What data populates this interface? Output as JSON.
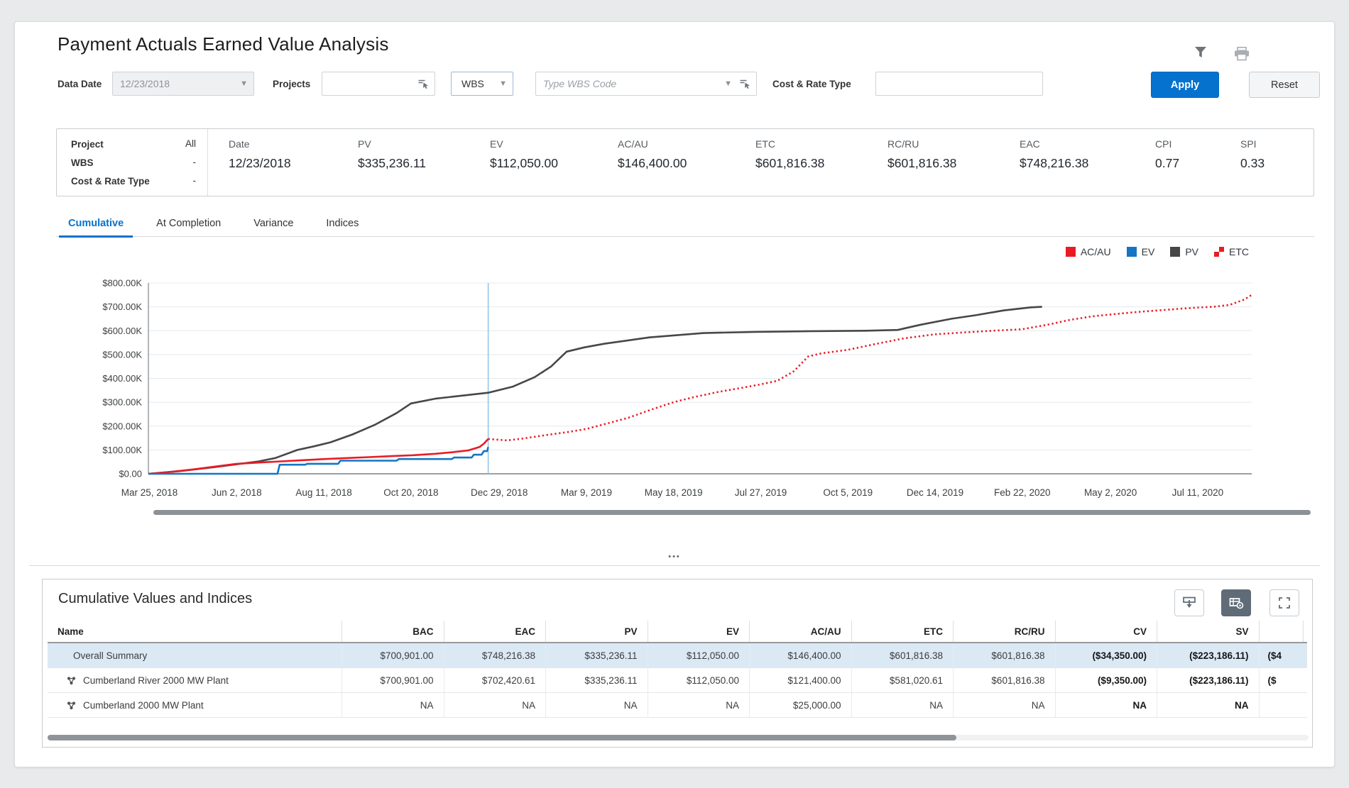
{
  "window": {
    "title": "Payment Actuals Earned Value Analysis"
  },
  "header_icons": [
    {
      "name": "filter-icon"
    },
    {
      "name": "printer-icon"
    }
  ],
  "filter_bar": {
    "data_date_label": "Data Date",
    "data_date_value": "12/23/2018",
    "projects_label": "Projects",
    "projects_value": "",
    "wbs_button_label": "WBS",
    "wbs_code_placeholder": "Type WBS Code",
    "cost_rate_label": "Cost & Rate Type",
    "cost_rate_value": "",
    "apply_label": "Apply",
    "reset_label": "Reset"
  },
  "summary_bar": {
    "left_rows": [
      {
        "label": "Project",
        "value": "All"
      },
      {
        "label": "WBS",
        "value": "-"
      },
      {
        "label": "Cost & Rate Type",
        "value": "-"
      }
    ],
    "metrics": [
      {
        "label": "Date",
        "value": "12/23/2018"
      },
      {
        "label": "PV",
        "value": "$335,236.11"
      },
      {
        "label": "EV",
        "value": "$112,050.00"
      },
      {
        "label": "AC/AU",
        "value": "$146,400.00"
      },
      {
        "label": "ETC",
        "value": "$601,816.38"
      },
      {
        "label": "RC/RU",
        "value": "$601,816.38"
      },
      {
        "label": "EAC",
        "value": "$748,216.38"
      },
      {
        "label": "CPI",
        "value": "0.77"
      },
      {
        "label": "SPI",
        "value": "0.33"
      }
    ]
  },
  "tabs": [
    {
      "label": "Cumulative",
      "active": true
    },
    {
      "label": "At Completion",
      "active": false
    },
    {
      "label": "Variance",
      "active": false
    },
    {
      "label": "Indices",
      "active": false
    }
  ],
  "chart_data": {
    "type": "line",
    "title": "Cumulative earned value curves",
    "ylim_k": [
      0,
      800
    ],
    "y_ticks": [
      "$0.00",
      "$100.00K",
      "$200.00K",
      "$300.00K",
      "$400.00K",
      "$500.00K",
      "$600.00K",
      "$700.00K",
      "$800.00K"
    ],
    "x_ticks": [
      {
        "pct": 0.1,
        "label": "Mar 25, 2018"
      },
      {
        "pct": 8.0,
        "label": "Jun 2, 2018"
      },
      {
        "pct": 15.9,
        "label": "Aug 11, 2018"
      },
      {
        "pct": 23.8,
        "label": "Oct 20, 2018"
      },
      {
        "pct": 31.8,
        "label": "Dec 29, 2018"
      },
      {
        "pct": 39.7,
        "label": "Mar 9, 2019"
      },
      {
        "pct": 47.6,
        "label": "May 18, 2019"
      },
      {
        "pct": 55.5,
        "label": "Jul 27, 2019"
      },
      {
        "pct": 63.4,
        "label": "Oct 5, 2019"
      },
      {
        "pct": 71.3,
        "label": "Dec 14, 2019"
      },
      {
        "pct": 79.2,
        "label": "Feb 22, 2020"
      },
      {
        "pct": 87.2,
        "label": "May 2, 2020"
      },
      {
        "pct": 95.1,
        "label": "Jul 11, 2020"
      }
    ],
    "data_date_pct": 30.8,
    "data_date_color": "#96c6e8",
    "series": [
      {
        "name": "PV",
        "color": "#474747",
        "style": "solid",
        "points": [
          [
            0,
            0
          ],
          [
            3,
            12
          ],
          [
            6,
            28
          ],
          [
            8,
            40
          ],
          [
            10,
            52
          ],
          [
            11.5,
            66
          ],
          [
            13.5,
            100
          ],
          [
            15,
            115
          ],
          [
            16.5,
            132
          ],
          [
            18.5,
            165
          ],
          [
            20.5,
            205
          ],
          [
            22.5,
            255
          ],
          [
            23.8,
            295
          ],
          [
            26,
            315
          ],
          [
            28.5,
            328
          ],
          [
            30.8,
            340
          ],
          [
            33,
            365
          ],
          [
            35,
            405
          ],
          [
            36.5,
            450
          ],
          [
            37.9,
            512
          ],
          [
            39.5,
            530
          ],
          [
            41.3,
            545
          ],
          [
            45.4,
            572
          ],
          [
            50.3,
            590
          ],
          [
            55,
            595
          ],
          [
            60,
            598
          ],
          [
            65,
            600
          ],
          [
            67.9,
            603
          ],
          [
            70,
            625
          ],
          [
            72.8,
            650
          ],
          [
            75,
            665
          ],
          [
            77.5,
            685
          ],
          [
            80,
            698
          ],
          [
            81,
            700
          ]
        ]
      },
      {
        "name": "AC/AU",
        "color": "#e81c24",
        "style": "solid",
        "points": [
          [
            0,
            0
          ],
          [
            2,
            8
          ],
          [
            4,
            18
          ],
          [
            6,
            30
          ],
          [
            8,
            42
          ],
          [
            10,
            47
          ],
          [
            12,
            52
          ],
          [
            14,
            57
          ],
          [
            16,
            62
          ],
          [
            18,
            66
          ],
          [
            20,
            70
          ],
          [
            22,
            74
          ],
          [
            24,
            78
          ],
          [
            26,
            84
          ],
          [
            27.5,
            90
          ],
          [
            29,
            98
          ],
          [
            30,
            112
          ],
          [
            30.4,
            126
          ],
          [
            30.8,
            146
          ]
        ]
      },
      {
        "name": "EV",
        "color": "#1475c4",
        "style": "solid",
        "points": [
          [
            0,
            0
          ],
          [
            11.7,
            0
          ],
          [
            11.9,
            38
          ],
          [
            14.2,
            38
          ],
          [
            14.4,
            42
          ],
          [
            17.2,
            42
          ],
          [
            17.4,
            55
          ],
          [
            22.5,
            55
          ],
          [
            22.7,
            62
          ],
          [
            27.5,
            62
          ],
          [
            27.7,
            68
          ],
          [
            29.3,
            68
          ],
          [
            29.5,
            80
          ],
          [
            30.2,
            80
          ],
          [
            30.4,
            95
          ],
          [
            30.7,
            95
          ],
          [
            30.8,
            112
          ]
        ]
      },
      {
        "name": "ETC",
        "color": "#e81c24",
        "style": "dotted",
        "points": [
          [
            30.8,
            146
          ],
          [
            32.5,
            140
          ],
          [
            34,
            148
          ],
          [
            36,
            162
          ],
          [
            38,
            175
          ],
          [
            39.7,
            188
          ],
          [
            41.5,
            210
          ],
          [
            43.5,
            235
          ],
          [
            45.5,
            268
          ],
          [
            47.6,
            300
          ],
          [
            49.5,
            322
          ],
          [
            51.5,
            342
          ],
          [
            53.5,
            358
          ],
          [
            55.5,
            375
          ],
          [
            57,
            390
          ],
          [
            58.5,
            430
          ],
          [
            59.8,
            492
          ],
          [
            61,
            505
          ],
          [
            63.4,
            520
          ],
          [
            66,
            545
          ],
          [
            68.5,
            568
          ],
          [
            71.3,
            585
          ],
          [
            74,
            593
          ],
          [
            76.5,
            600
          ],
          [
            79.2,
            606
          ],
          [
            81.5,
            625
          ],
          [
            83.5,
            645
          ],
          [
            85.5,
            660
          ],
          [
            87.2,
            668
          ],
          [
            89.5,
            678
          ],
          [
            91.5,
            685
          ],
          [
            93.5,
            692
          ],
          [
            95.1,
            697
          ],
          [
            96.5,
            700
          ],
          [
            98,
            708
          ],
          [
            99.3,
            730
          ],
          [
            100,
            750
          ]
        ]
      }
    ],
    "legend": [
      {
        "label": "AC/AU",
        "color": "#e81c24",
        "swatch": "square"
      },
      {
        "label": "EV",
        "color": "#1475c4",
        "swatch": "square"
      },
      {
        "label": "PV",
        "color": "#474747",
        "swatch": "square"
      },
      {
        "label": "ETC",
        "color": "#e81c24",
        "swatch": "dotted"
      }
    ]
  },
  "splitter_dots": "•••",
  "table_panel": {
    "title": "Cumulative Values and Indices",
    "toolbar_icons": [
      {
        "name": "detach-icon",
        "active": false
      },
      {
        "name": "grid-settings-icon",
        "active": true
      },
      {
        "name": "expand-icon",
        "active": false
      }
    ],
    "columns": [
      "Name",
      "BAC",
      "EAC",
      "PV",
      "EV",
      "AC/AU",
      "ETC",
      "RC/RU",
      "CV",
      "SV",
      ""
    ],
    "bold_columns": [
      "CV",
      "SV",
      ""
    ],
    "rows": [
      {
        "name": "Overall Summary",
        "has_icon": false,
        "selected": true,
        "values": [
          "$700,901.00",
          "$748,216.38",
          "$335,236.11",
          "$112,050.00",
          "$146,400.00",
          "$601,816.38",
          "$601,816.38",
          "($34,350.00)",
          "($223,186.11)",
          "($4"
        ]
      },
      {
        "name": "Cumberland River 2000 MW Plant",
        "has_icon": true,
        "selected": false,
        "values": [
          "$700,901.00",
          "$702,420.61",
          "$335,236.11",
          "$112,050.00",
          "$121,400.00",
          "$581,020.61",
          "$601,816.38",
          "($9,350.00)",
          "($223,186.11)",
          "($"
        ]
      },
      {
        "name": "Cumberland 2000 MW Plant",
        "has_icon": true,
        "selected": false,
        "values": [
          "NA",
          "NA",
          "NA",
          "NA",
          "$25,000.00",
          "NA",
          "NA",
          "NA",
          "NA",
          ""
        ]
      }
    ]
  }
}
